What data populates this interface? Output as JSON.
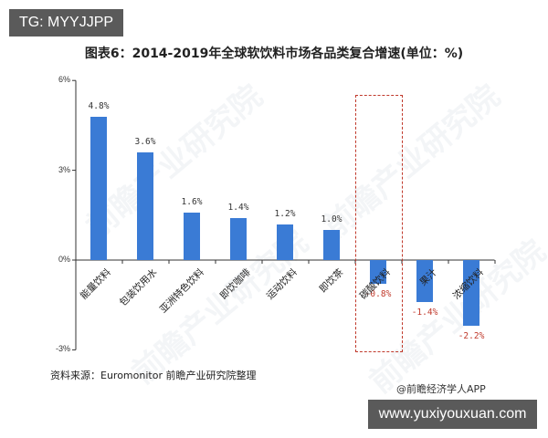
{
  "badge_top": "TG: MYYJJPP",
  "title": "图表6：2014-2019年全球软饮料市场各品类复合增速(单位：%)",
  "chart_data": {
    "type": "bar",
    "title": "图表6：2014-2019年全球软饮料市场各品类复合增速(单位：%)",
    "xlabel": "",
    "ylabel": "",
    "unit": "%",
    "ylim": [
      -3,
      6
    ],
    "yticks": [
      "6%",
      "3%",
      "0%",
      "-3%"
    ],
    "grid": false,
    "legend": null,
    "categories": [
      "能量饮料",
      "包装饮用水",
      "亚洲特色饮料",
      "即饮咖啡",
      "运动饮料",
      "即饮茶",
      "碳酸饮料",
      "果汁",
      "浓缩饮料"
    ],
    "values": [
      4.8,
      3.6,
      1.6,
      1.4,
      1.2,
      1.0,
      -0.8,
      -1.4,
      -2.2
    ],
    "value_labels": [
      "4.8%",
      "3.6%",
      "1.6%",
      "1.4%",
      "1.2%",
      "1.0%",
      "-0.8%",
      "-1.4%",
      "-2.2%"
    ],
    "annotations": [
      "Dashed red box highlighting 碳酸饮料"
    ],
    "colors": {
      "bar": "#3a7bd5",
      "negative_label": "#c0392b",
      "highlight_box": "#c0392b"
    }
  },
  "watermark": "前瞻产业研究院",
  "source": "资料来源：Euromonitor 前瞻产业研究院整理",
  "credit": "@前瞻经济学人APP",
  "badge_bottom": "www.yuxiyouxuan.com"
}
